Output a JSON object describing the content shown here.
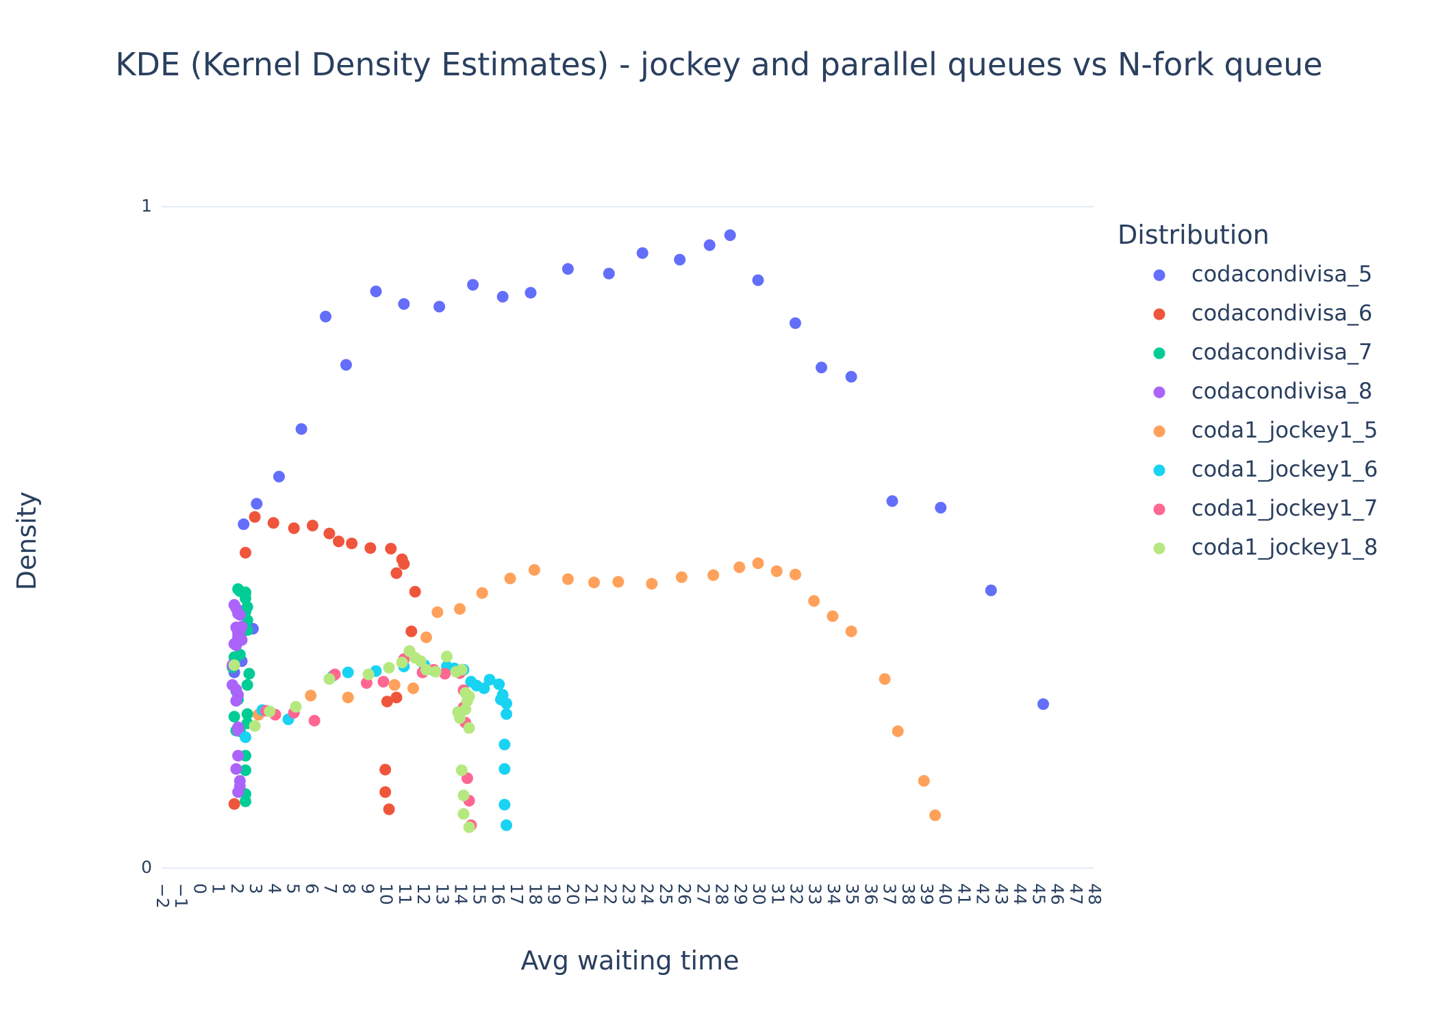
{
  "chart_data": {
    "type": "scatter",
    "title": "KDE (Kernel Density Estimates) - jockey and parallel queues vs N-fork queue",
    "xlabel": "Avg waiting time",
    "ylabel": "Density",
    "xlim": [
      -2,
      48
    ],
    "ylim": [
      0,
      1
    ],
    "x_ticks": [
      -2,
      -1,
      0,
      1,
      2,
      3,
      4,
      5,
      6,
      7,
      8,
      9,
      10,
      11,
      12,
      13,
      14,
      15,
      16,
      17,
      18,
      19,
      20,
      21,
      22,
      23,
      24,
      25,
      26,
      27,
      28,
      29,
      30,
      31,
      32,
      33,
      34,
      35,
      36,
      37,
      38,
      39,
      40,
      41,
      42,
      43,
      44,
      45,
      46,
      47,
      48
    ],
    "legend": {
      "title": "Distribution",
      "position": "right"
    },
    "series": [
      {
        "name": "codacondivisa_5",
        "color": "#636efa",
        "x": [
          2.4,
          3.1,
          4.3,
          5.5,
          6.8,
          7.9,
          9.5,
          11.0,
          12.9,
          14.7,
          16.3,
          17.8,
          19.8,
          22.0,
          23.8,
          25.8,
          27.4,
          28.5,
          30.0,
          32.0,
          33.4,
          35.0,
          37.2,
          39.8,
          42.5,
          45.3,
          2.9,
          2.3,
          1.9
        ],
        "y": [
          0.52,
          0.551,
          0.592,
          0.664,
          0.834,
          0.761,
          0.872,
          0.853,
          0.849,
          0.882,
          0.864,
          0.87,
          0.906,
          0.899,
          0.93,
          0.92,
          0.942,
          0.957,
          0.889,
          0.824,
          0.757,
          0.743,
          0.555,
          0.545,
          0.42,
          0.248,
          0.362,
          0.313,
          0.296
        ]
      },
      {
        "name": "codacondivisa_6",
        "color": "#ef553b",
        "x": [
          2.5,
          3.0,
          4.0,
          5.1,
          6.1,
          7.0,
          7.5,
          8.2,
          9.2,
          10.3,
          10.9,
          10.6,
          11.0,
          11.4,
          11.6,
          11.3,
          10.6,
          10.1,
          10.0,
          10.0,
          10.2,
          1.9
        ],
        "y": [
          0.477,
          0.531,
          0.522,
          0.514,
          0.518,
          0.506,
          0.494,
          0.491,
          0.484,
          0.483,
          0.467,
          0.446,
          0.46,
          0.358,
          0.418,
          0.328,
          0.258,
          0.252,
          0.149,
          0.115,
          0.089,
          0.097
        ]
      },
      {
        "name": "codacondivisa_7",
        "color": "#00cc96",
        "x": [
          2.1,
          2.2,
          2.5,
          2.5,
          2.5,
          2.6,
          2.5,
          2.6,
          2.6,
          2.4,
          2.1,
          1.9,
          1.9,
          1.8,
          2.0,
          2.1,
          1.9,
          2.2,
          2.2,
          2.6,
          2.6,
          2.6,
          2.5,
          2.5,
          2.5,
          2.5,
          2.7,
          2.2,
          2.0
        ],
        "y": [
          0.422,
          0.419,
          0.408,
          0.417,
          0.416,
          0.395,
          0.388,
          0.375,
          0.36,
          0.359,
          0.349,
          0.319,
          0.311,
          0.304,
          0.268,
          0.255,
          0.229,
          0.209,
          0.207,
          0.277,
          0.233,
          0.219,
          0.17,
          0.148,
          0.112,
          0.101,
          0.294,
          0.323,
          0.208
        ]
      },
      {
        "name": "codacondivisa_8",
        "color": "#ab63fa",
        "x": [
          1.9,
          2.0,
          2.1,
          2.2,
          2.3,
          2.0,
          2.1,
          2.2,
          2.1,
          2.3,
          2.0,
          1.9,
          1.8,
          1.8,
          2.0,
          2.1,
          2.0,
          2.1,
          2.1,
          2.1,
          2.0,
          2.2,
          2.2,
          2.1
        ],
        "y": [
          0.398,
          0.393,
          0.385,
          0.383,
          0.365,
          0.364,
          0.355,
          0.358,
          0.348,
          0.345,
          0.337,
          0.339,
          0.307,
          0.277,
          0.27,
          0.262,
          0.253,
          0.213,
          0.208,
          0.17,
          0.15,
          0.132,
          0.124,
          0.115
        ]
      },
      {
        "name": "coda1_jockey1_5",
        "color": "#ffa15a",
        "x": [
          3.2,
          6.0,
          8.0,
          10.5,
          11.5,
          12.2,
          12.8,
          14.0,
          15.2,
          16.7,
          18.0,
          19.8,
          21.2,
          22.5,
          24.3,
          25.9,
          27.6,
          29.0,
          30.0,
          31.0,
          32.0,
          33.0,
          34.0,
          35.0,
          36.8,
          37.5,
          38.9,
          39.5
        ],
        "y": [
          0.232,
          0.261,
          0.258,
          0.277,
          0.272,
          0.349,
          0.387,
          0.392,
          0.416,
          0.438,
          0.451,
          0.437,
          0.432,
          0.433,
          0.43,
          0.44,
          0.443,
          0.455,
          0.461,
          0.449,
          0.444,
          0.404,
          0.381,
          0.358,
          0.286,
          0.207,
          0.132,
          0.08
        ]
      },
      {
        "name": "coda1_jockey1_6",
        "color": "#19d3f3",
        "x": [
          2.5,
          3.4,
          4.8,
          7.2,
          8.0,
          9.5,
          11.0,
          12.1,
          12.6,
          13.3,
          13.7,
          14.2,
          14.6,
          14.9,
          15.3,
          15.6,
          16.1,
          16.3,
          16.2,
          16.5,
          16.5,
          16.4,
          16.4,
          16.4,
          16.5
        ],
        "y": [
          0.198,
          0.239,
          0.225,
          0.291,
          0.296,
          0.298,
          0.305,
          0.307,
          0.299,
          0.305,
          0.302,
          0.3,
          0.282,
          0.276,
          0.272,
          0.285,
          0.278,
          0.262,
          0.255,
          0.249,
          0.233,
          0.187,
          0.15,
          0.096,
          0.065
        ]
      },
      {
        "name": "coda1_jockey1_7",
        "color": "#ff6692",
        "x": [
          3.6,
          4.1,
          5.1,
          6.2,
          7.3,
          9.0,
          9.9,
          11.0,
          12.0,
          12.6,
          13.2,
          14.0,
          14.2,
          14.2,
          14.3,
          14.4,
          14.5,
          14.6
        ],
        "y": [
          0.238,
          0.232,
          0.235,
          0.223,
          0.293,
          0.28,
          0.282,
          0.316,
          0.296,
          0.3,
          0.294,
          0.295,
          0.269,
          0.243,
          0.22,
          0.136,
          0.102,
          0.065
        ]
      },
      {
        "name": "coda1_jockey1_8",
        "color": "#b6e880",
        "x": [
          1.9,
          3.0,
          3.8,
          5.2,
          7.0,
          9.1,
          10.2,
          10.9,
          11.3,
          11.6,
          11.9,
          12.2,
          12.7,
          13.3,
          13.8,
          14.1,
          14.3,
          14.5,
          14.3,
          14.4,
          14.5,
          14.0,
          13.9,
          14.1,
          14.2,
          14.2,
          14.5
        ],
        "y": [
          0.307,
          0.215,
          0.237,
          0.244,
          0.286,
          0.293,
          0.303,
          0.311,
          0.328,
          0.318,
          0.313,
          0.3,
          0.297,
          0.32,
          0.297,
          0.3,
          0.265,
          0.26,
          0.24,
          0.253,
          0.212,
          0.227,
          0.236,
          0.148,
          0.11,
          0.082,
          0.062
        ]
      }
    ]
  }
}
